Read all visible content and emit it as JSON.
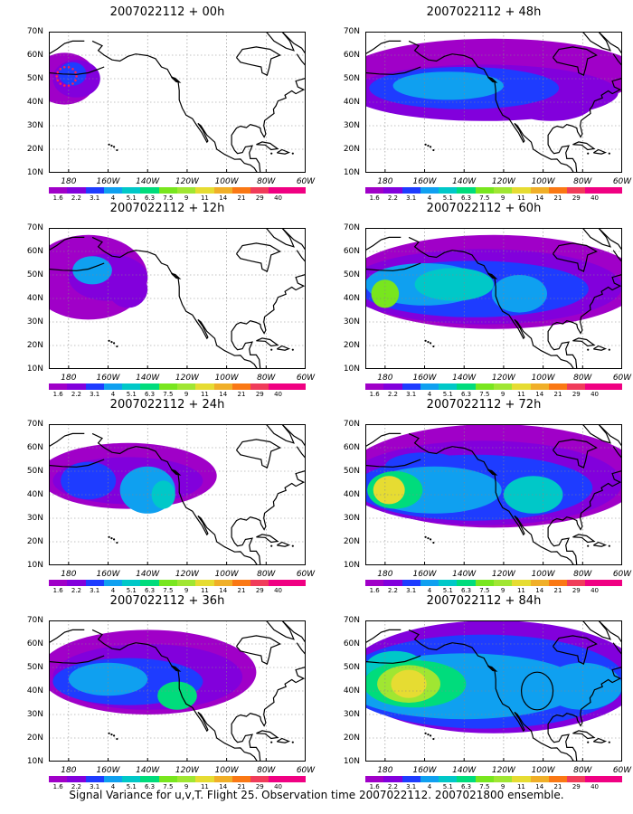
{
  "y_labels": [
    "70N",
    "60N",
    "50N",
    "40N",
    "30N",
    "20N",
    "10N"
  ],
  "x_labels": [
    "180",
    "160W",
    "140W",
    "120W",
    "100W",
    "80W",
    "60W"
  ],
  "colorbar": {
    "labels": [
      "1.6",
      "2.2",
      "3.1",
      "4",
      "5.1",
      "6.3",
      "7.5",
      "9",
      "11",
      "14",
      "21",
      "29",
      "40"
    ],
    "colors": [
      "#a000c8",
      "#8200dc",
      "#1e3cff",
      "#0fa0f0",
      "#00c8c8",
      "#00dc7c",
      "#78e61e",
      "#a0e632",
      "#e6dc32",
      "#f0af28",
      "#fa7814",
      "#f03c5a",
      "#f00082"
    ]
  },
  "panels": [
    {
      "title": "2007022112 + 00h"
    },
    {
      "title": "2007022112 + 48h"
    },
    {
      "title": "2007022112 + 12h"
    },
    {
      "title": "2007022112 + 60h"
    },
    {
      "title": "2007022112 + 24h"
    },
    {
      "title": "2007022112 + 72h"
    },
    {
      "title": "2007022112 + 36h"
    },
    {
      "title": "2007022112 + 84h"
    }
  ],
  "caption": "Signal Variance for u,v,T. Flight 25. Observation time 2007022112. 2007021800 ensemble."
}
